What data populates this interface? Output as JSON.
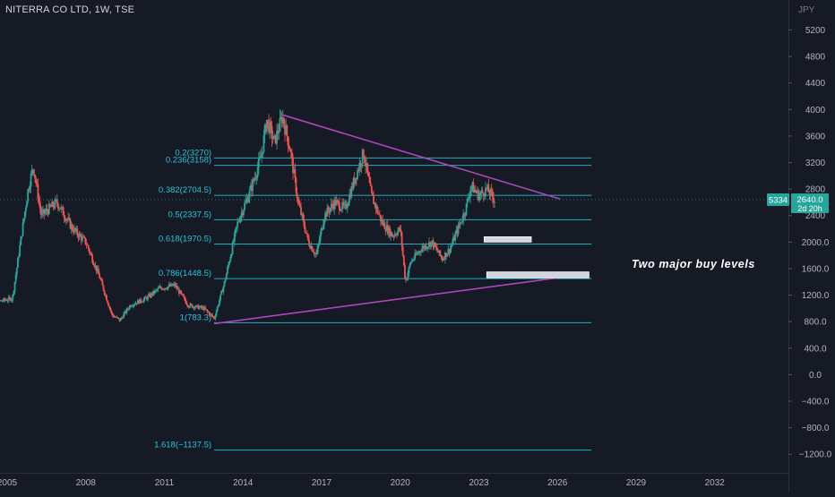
{
  "header": {
    "symbol": "NITERRA CO LTD, 1W, TSE",
    "currency": "JPY"
  },
  "price_tags": {
    "left_value": "5334",
    "right_value": "2640.0",
    "right_countdown": "2d 20h"
  },
  "colors": {
    "background": "#161a25",
    "up_candle": "#26a69a",
    "down_candle": "#ef5350",
    "fib_line": "#26c6da",
    "trendline": "#ab47bc",
    "zone_fill": "#d1d4dc",
    "axis_text": "#b2b5be"
  },
  "chart_data": {
    "type": "candlestick",
    "title": "NITERRA CO LTD, 1W, TSE",
    "ylabel": "JPY",
    "ylim": [
      -1300,
      5500
    ],
    "xlim": [
      2004.1,
      2034.2
    ],
    "grid": false,
    "y_ticks": [
      5200,
      4800,
      4400,
      4000,
      3600,
      3200,
      2800,
      2400,
      2000,
      1600,
      1200,
      800,
      400,
      0,
      -400,
      -800,
      -1200
    ],
    "y_tick_labels": [
      "5200",
      "4800",
      "4400",
      "4000",
      "3600",
      "3200",
      "2800",
      "2400",
      "2000.0",
      "1600.0",
      "1200.0",
      "800.0",
      "400.0",
      "0.0",
      "−400.0",
      "−800.0",
      "−1200.0"
    ],
    "x_ticks": [
      "2005",
      "2008",
      "2011",
      "2014",
      "2017",
      "2020",
      "2023",
      "2026",
      "2029",
      "2032"
    ],
    "price_path": [
      [
        2004.1,
        1050
      ],
      [
        2005.2,
        1150
      ],
      [
        2005.8,
        2800
      ],
      [
        2006.0,
        3150
      ],
      [
        2006.3,
        2400
      ],
      [
        2006.9,
        2600
      ],
      [
        2007.5,
        2200
      ],
      [
        2008.0,
        2000
      ],
      [
        2008.5,
        1500
      ],
      [
        2009.0,
        900
      ],
      [
        2009.3,
        820
      ],
      [
        2009.7,
        1050
      ],
      [
        2010.3,
        1150
      ],
      [
        2010.8,
        1300
      ],
      [
        2011.4,
        1350
      ],
      [
        2011.9,
        1050
      ],
      [
        2012.5,
        1000
      ],
      [
        2012.9,
        850
      ],
      [
        2013.3,
        1400
      ],
      [
        2013.8,
        2300
      ],
      [
        2014.3,
        2800
      ],
      [
        2014.7,
        3300
      ],
      [
        2014.9,
        3850
      ],
      [
        2015.2,
        3500
      ],
      [
        2015.5,
        3900
      ],
      [
        2015.8,
        3400
      ],
      [
        2016.1,
        2600
      ],
      [
        2016.5,
        2000
      ],
      [
        2016.8,
        1800
      ],
      [
        2017.1,
        2400
      ],
      [
        2017.5,
        2600
      ],
      [
        2017.9,
        2500
      ],
      [
        2018.3,
        3000
      ],
      [
        2018.6,
        3350
      ],
      [
        2018.9,
        2700
      ],
      [
        2019.3,
        2300
      ],
      [
        2019.7,
        2100
      ],
      [
        2020.0,
        2200
      ],
      [
        2020.2,
        1400
      ],
      [
        2020.4,
        1700
      ],
      [
        2020.8,
        1900
      ],
      [
        2021.2,
        2000
      ],
      [
        2021.6,
        1750
      ],
      [
        2021.9,
        1900
      ],
      [
        2022.2,
        2200
      ],
      [
        2022.5,
        2500
      ],
      [
        2022.7,
        2850
      ],
      [
        2023.0,
        2700
      ],
      [
        2023.3,
        2800
      ],
      [
        2023.6,
        2640
      ]
    ],
    "fib_levels": [
      {
        "label": "0.2(3270)",
        "value": 3270
      },
      {
        "label": "0.236(3158)",
        "value": 3158
      },
      {
        "label": "0.382(2704.5)",
        "value": 2704.5
      },
      {
        "label": "0.5(2337.5)",
        "value": 2337.5
      },
      {
        "label": "0.618(1970.5)",
        "value": 1970.5
      },
      {
        "label": "0.786(1448.5)",
        "value": 1448.5
      },
      {
        "label": "1(783.3)",
        "value": 783.3
      },
      {
        "label": "1.618(−1137.5)",
        "value": -1137.5
      }
    ],
    "fib_x_range": [
      2012.9,
      2027.3
    ],
    "trendlines": [
      {
        "from": [
          2015.5,
          3920
        ],
        "to": [
          2026.1,
          2650
        ]
      },
      {
        "from": [
          2012.9,
          770
        ],
        "to": [
          2026.0,
          1460
        ]
      }
    ],
    "zones": [
      {
        "x": [
          2023.2,
          2025.0
        ],
        "y": [
          2000,
          2080
        ]
      },
      {
        "x": [
          2023.3,
          2027.2
        ],
        "y": [
          1460,
          1550
        ]
      }
    ],
    "annotation": "Two major buy levels",
    "last_price": 2640.0
  }
}
